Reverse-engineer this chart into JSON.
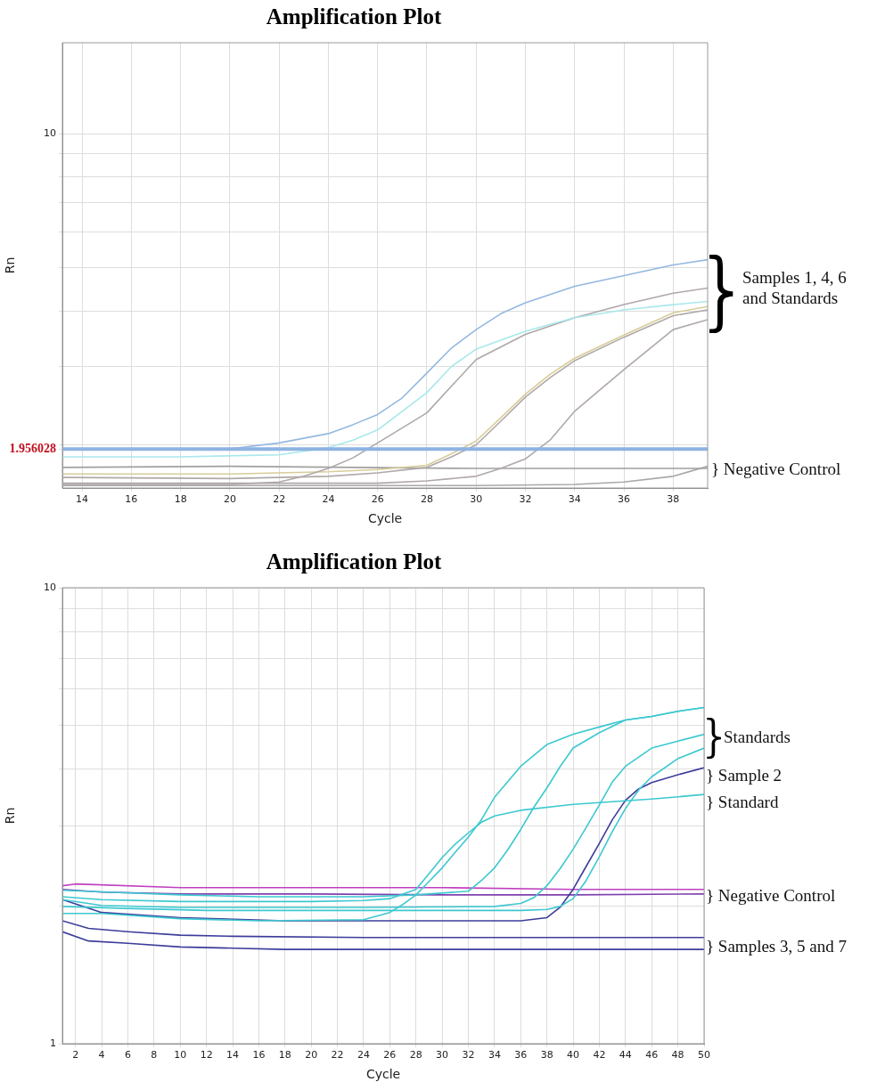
{
  "chart_data": [
    {
      "type": "line",
      "title": "Amplification Plot",
      "xlabel": "Cycle",
      "ylabel": "Rn",
      "log": "y",
      "grid": true,
      "marker": "none",
      "xlim": [
        13.2,
        39.4
      ],
      "xticks": [
        14,
        16,
        18,
        20,
        22,
        24,
        26,
        28,
        30,
        32,
        34,
        36,
        38
      ],
      "ylim": [
        1.6,
        16
      ],
      "yticks": [
        {
          "value": 1.956028,
          "label": "1.956028"
        },
        {
          "value": 2,
          "label": null
        },
        {
          "value": 3,
          "label": null
        },
        {
          "value": 4,
          "label": null
        },
        {
          "value": 5,
          "label": null
        },
        {
          "value": 6,
          "label": null
        },
        {
          "value": 7,
          "label": null
        },
        {
          "value": 8,
          "label": null
        },
        {
          "value": 9,
          "label": null
        },
        {
          "value": 10,
          "label": "10"
        }
      ],
      "ref_lines": [
        {
          "axis": "y",
          "value": 1.956028,
          "color": "#8db3e2"
        }
      ],
      "annotations": [
        "Samples 1, 4, 6 and Standards",
        "} Negative Control"
      ],
      "series": [
        {
          "color": "#94b8e0",
          "x": [
            13.2,
            16,
            20,
            22,
            24,
            25,
            26,
            27,
            28,
            29,
            30,
            31,
            32,
            34,
            36,
            38,
            39.4
          ],
          "values": [
            1.95,
            1.95,
            1.96,
            2.02,
            2.12,
            2.22,
            2.34,
            2.55,
            2.9,
            3.3,
            3.63,
            3.94,
            4.17,
            4.54,
            4.8,
            5.07,
            5.21
          ]
        },
        {
          "color": "#a8e8ec",
          "x": [
            13.2,
            18,
            22,
            24,
            25,
            26,
            28,
            29,
            30,
            32,
            34,
            36,
            38,
            39.4
          ],
          "values": [
            1.88,
            1.88,
            1.9,
            1.97,
            2.05,
            2.16,
            2.62,
            3.0,
            3.28,
            3.6,
            3.86,
            4.02,
            4.13,
            4.2
          ]
        },
        {
          "color": "#b0a8a8",
          "x": [
            13.2,
            20,
            22,
            23,
            24,
            25,
            26,
            28,
            29,
            30,
            32,
            34,
            36,
            38,
            39.4
          ],
          "values": [
            1.63,
            1.63,
            1.65,
            1.7,
            1.77,
            1.87,
            2.02,
            2.36,
            2.71,
            3.11,
            3.54,
            3.86,
            4.13,
            4.38,
            4.5
          ]
        },
        {
          "color": "#d8cc98",
          "x": [
            13.2,
            20,
            24,
            26,
            28,
            29,
            30,
            31,
            32,
            33,
            34,
            36,
            38,
            39.4
          ],
          "values": [
            1.72,
            1.72,
            1.74,
            1.76,
            1.8,
            1.91,
            2.04,
            2.3,
            2.6,
            2.88,
            3.13,
            3.53,
            3.96,
            4.09
          ]
        },
        {
          "color": "#b0a8a8",
          "x": [
            13.2,
            20,
            24,
            26,
            28,
            29,
            30,
            31,
            32,
            33,
            34,
            36,
            38,
            39.4
          ],
          "values": [
            1.69,
            1.68,
            1.7,
            1.73,
            1.78,
            1.88,
            2.0,
            2.26,
            2.56,
            2.83,
            3.09,
            3.49,
            3.9,
            4.02
          ]
        },
        {
          "color": "#b0a8a8",
          "x": [
            13.2,
            26,
            28,
            30,
            31,
            32,
            33,
            34,
            35,
            36,
            38,
            39.4
          ],
          "values": [
            1.64,
            1.64,
            1.66,
            1.7,
            1.77,
            1.86,
            2.05,
            2.38,
            2.65,
            2.95,
            3.63,
            3.82
          ]
        },
        {
          "color": "#a0a0a0",
          "x": [
            13.2,
            20,
            30,
            39.4
          ],
          "values": [
            1.78,
            1.79,
            1.77,
            1.77
          ]
        },
        {
          "color": "#a8a8a8",
          "x": [
            13.2,
            30,
            34,
            36,
            38,
            39.4
          ],
          "values": [
            1.62,
            1.62,
            1.63,
            1.65,
            1.7,
            1.79
          ]
        }
      ]
    },
    {
      "type": "line",
      "title": "Amplification Plot",
      "xlabel": "Cycle",
      "ylabel": "Rn",
      "log": "y",
      "grid": true,
      "marker": "none",
      "xlim": [
        1,
        50
      ],
      "xticks": [
        2,
        4,
        6,
        8,
        10,
        12,
        14,
        16,
        18,
        20,
        22,
        24,
        26,
        28,
        30,
        32,
        34,
        36,
        38,
        40,
        42,
        44,
        46,
        48,
        50
      ],
      "ylim": [
        1,
        10
      ],
      "yticks": [
        1,
        {
          "value": 2,
          "label": null
        },
        {
          "value": 3,
          "label": null
        },
        {
          "value": 4,
          "label": null
        },
        {
          "value": 5,
          "label": null
        },
        {
          "value": 6,
          "label": null
        },
        {
          "value": 7,
          "label": null
        },
        {
          "value": 8,
          "label": null
        },
        {
          "value": 9,
          "label": null
        },
        10
      ],
      "annotations": [
        "Standards",
        "} Sample 2",
        "} Standard",
        "} Negative Control",
        "} Samples 3, 5 and 7"
      ],
      "series": [
        {
          "color": "#3cc8d0",
          "x": [
            1,
            4,
            10,
            16,
            24,
            26,
            27,
            28,
            29,
            30,
            31,
            32,
            33,
            34,
            36,
            38,
            40,
            42,
            44,
            46,
            48,
            50
          ],
          "values": [
            1.93,
            1.93,
            1.88,
            1.86,
            1.87,
            1.94,
            2.02,
            2.12,
            2.27,
            2.43,
            2.63,
            2.84,
            3.1,
            3.47,
            4.06,
            4.53,
            4.77,
            4.95,
            5.13,
            5.22,
            5.36,
            5.46
          ]
        },
        {
          "color": "#3cc8d0",
          "x": [
            1,
            4,
            10,
            20,
            24,
            26,
            28,
            29,
            30,
            31,
            32,
            33,
            34,
            36,
            40,
            46,
            50
          ],
          "values": [
            2.1,
            2.07,
            2.05,
            2.05,
            2.06,
            2.08,
            2.18,
            2.36,
            2.56,
            2.74,
            2.9,
            3.06,
            3.16,
            3.25,
            3.35,
            3.44,
            3.52
          ]
        },
        {
          "color": "#3cc8d0",
          "x": [
            1,
            10,
            16,
            24,
            28,
            32,
            33,
            34,
            35,
            36,
            37,
            38,
            39,
            40,
            42,
            44,
            46,
            48,
            50
          ],
          "values": [
            2.17,
            2.12,
            2.1,
            2.1,
            2.12,
            2.16,
            2.28,
            2.43,
            2.66,
            2.95,
            3.3,
            3.64,
            4.05,
            4.45,
            4.81,
            5.13,
            5.22,
            5.36,
            5.46
          ]
        },
        {
          "color": "#3cc8d0",
          "x": [
            1,
            4,
            10,
            24,
            34,
            36,
            37,
            38,
            39,
            40,
            41,
            42,
            43,
            44,
            46,
            48,
            50
          ],
          "values": [
            2.07,
            2.01,
            1.99,
            1.99,
            2.0,
            2.03,
            2.09,
            2.22,
            2.42,
            2.67,
            2.98,
            3.34,
            3.75,
            4.06,
            4.45,
            4.61,
            4.77
          ]
        },
        {
          "color": "#3cc8d0",
          "x": [
            1,
            6,
            12,
            24,
            36,
            38,
            39,
            40,
            41,
            42,
            43,
            44,
            45,
            46,
            48,
            50
          ],
          "values": [
            2.0,
            1.98,
            1.96,
            1.96,
            1.96,
            1.97,
            2.0,
            2.08,
            2.28,
            2.57,
            2.92,
            3.28,
            3.6,
            3.85,
            4.22,
            4.45
          ]
        },
        {
          "color": "#3c3c9c",
          "x": [
            1,
            4,
            10,
            18,
            24,
            36,
            38,
            39,
            40,
            41,
            42,
            43,
            44,
            45,
            46,
            48,
            50
          ],
          "values": [
            2.07,
            1.94,
            1.89,
            1.86,
            1.86,
            1.86,
            1.89,
            1.99,
            2.18,
            2.45,
            2.75,
            3.1,
            3.42,
            3.62,
            3.74,
            3.89,
            4.03
          ]
        },
        {
          "color": "#c040c0",
          "x": [
            1,
            2,
            10,
            20,
            30,
            40,
            50
          ],
          "values": [
            2.22,
            2.24,
            2.2,
            2.2,
            2.2,
            2.18,
            2.18
          ]
        },
        {
          "color": "#8040b0",
          "x": [
            1,
            4,
            10,
            20,
            30,
            40,
            50
          ],
          "values": [
            2.18,
            2.15,
            2.13,
            2.13,
            2.12,
            2.12,
            2.13
          ]
        },
        {
          "color": "#3c3c9c",
          "x": [
            1,
            3,
            6,
            10,
            14,
            24,
            50
          ],
          "values": [
            1.86,
            1.79,
            1.76,
            1.73,
            1.72,
            1.71,
            1.71
          ]
        },
        {
          "color": "#3c3c9c",
          "x": [
            1,
            3,
            6,
            10,
            14,
            18,
            50
          ],
          "values": [
            1.76,
            1.68,
            1.66,
            1.63,
            1.62,
            1.61,
            1.61
          ]
        }
      ]
    }
  ]
}
